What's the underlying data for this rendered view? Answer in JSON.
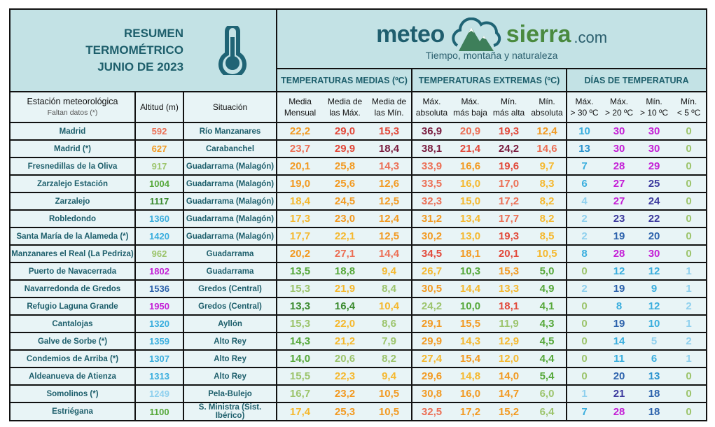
{
  "header": {
    "title_lines": [
      "RESUMEN",
      "TERMOMÉTRICO",
      "JUNIO DE 2023"
    ],
    "logo": {
      "meteo": "meteo",
      "sierra": "sierra",
      "com": ".com",
      "tagline": "Tiempo, montaña y naturaleza"
    },
    "groups": [
      "TEMPERATURAS MEDIAS (ºC)",
      "TEMPERATURAS EXTREMAS (ºC)",
      "DÍAS DE TEMPERATURA"
    ]
  },
  "columns": {
    "station": "Estación meteorológica",
    "station_note": "Faltan datos (*)",
    "altitude": "Altitud (m)",
    "situation": "Situación",
    "sub": [
      [
        "Media",
        "Mensual"
      ],
      [
        "Media de",
        "las Máx."
      ],
      [
        "Media de",
        "las Mín."
      ],
      [
        "Máx.",
        "absoluta"
      ],
      [
        "Máx.",
        "más baja"
      ],
      [
        "Mín.",
        "más alta"
      ],
      [
        "Mín.",
        "absoluta"
      ],
      [
        "Máx.",
        "> 30 ºC"
      ],
      [
        "Máx.",
        "> 20 ºC"
      ],
      [
        "Mín.",
        "> 10 ºC"
      ],
      [
        "Mín.",
        "< 5 ºC"
      ]
    ]
  },
  "palette": {
    "Y": "#f5b82e",
    "O": "#f29a22",
    "S": "#ec6f55",
    "R": "#e2493a",
    "DR": "#7a1c3f",
    "LG": "#9cc46c",
    "G": "#56a83a",
    "DG": "#3a8a2e",
    "LB": "#8fd0ee",
    "B": "#3aaede",
    "MB": "#2a93cf",
    "DB": "#2c62ac",
    "IN": "#3d3a9e",
    "MG": "#c41fd6"
  },
  "rows": [
    {
      "station": "Madrid",
      "alt": "592",
      "altc": "S",
      "sit": "Río Manzanares",
      "v": [
        "22,2",
        "29,0",
        "15,3",
        "36,9",
        "20,9",
        "19,3",
        "12,4",
        "10",
        "30",
        "30",
        "0"
      ],
      "c": [
        "O",
        "R",
        "R",
        "DR",
        "S",
        "R",
        "O",
        "B",
        "MG",
        "MG",
        "LG"
      ]
    },
    {
      "station": "Madrid (*)",
      "alt": "627",
      "altc": "O",
      "sit": "Carabanchel",
      "v": [
        "23,7",
        "29,9",
        "18,4",
        "38,1",
        "21,4",
        "24,2",
        "14,6",
        "13",
        "30",
        "30",
        "0"
      ],
      "c": [
        "S",
        "R",
        "DR",
        "DR",
        "R",
        "DR",
        "S",
        "MB",
        "MG",
        "MG",
        "LG"
      ]
    },
    {
      "station": "Fresnedillas de la Oliva",
      "alt": "917",
      "altc": "LG",
      "sit": "Guadarrama (Malagón)",
      "v": [
        "20,1",
        "25,8",
        "14,3",
        "33,9",
        "16,6",
        "19,6",
        "9,7",
        "7",
        "28",
        "29",
        "0"
      ],
      "c": [
        "O",
        "O",
        "S",
        "S",
        "O",
        "R",
        "Y",
        "B",
        "MG",
        "MG",
        "LG"
      ]
    },
    {
      "station": "Zarzalejo Estación",
      "alt": "1004",
      "altc": "G",
      "sit": "Guadarrama (Malagón)",
      "v": [
        "19,0",
        "25,6",
        "12,6",
        "33,5",
        "16,0",
        "17,0",
        "8,3",
        "6",
        "27",
        "25",
        "0"
      ],
      "c": [
        "O",
        "O",
        "O",
        "S",
        "Y",
        "S",
        "Y",
        "B",
        "MG",
        "IN",
        "LG"
      ]
    },
    {
      "station": "Zarzalejo",
      "alt": "1117",
      "altc": "DG",
      "sit": "Guadarrama (Malagón)",
      "v": [
        "18,4",
        "24,5",
        "12,5",
        "32,3",
        "15,0",
        "17,2",
        "8,2",
        "4",
        "27",
        "24",
        "0"
      ],
      "c": [
        "Y",
        "O",
        "O",
        "S",
        "Y",
        "S",
        "Y",
        "LB",
        "MG",
        "IN",
        "LG"
      ]
    },
    {
      "station": "Robledondo",
      "alt": "1360",
      "altc": "B",
      "sit": "Guadarrama (Malagón)",
      "v": [
        "17,3",
        "23,0",
        "12,4",
        "31,2",
        "13,4",
        "17,7",
        "8,2",
        "2",
        "23",
        "22",
        "0"
      ],
      "c": [
        "Y",
        "O",
        "O",
        "O",
        "Y",
        "S",
        "Y",
        "LB",
        "IN",
        "IN",
        "LG"
      ]
    },
    {
      "station": "Santa María de la Alameda (*)",
      "alt": "1420",
      "altc": "B",
      "sit": "Guadarrama (Malagón)",
      "v": [
        "17,7",
        "22,1",
        "12,5",
        "30,2",
        "13,0",
        "19,3",
        "8,5",
        "2",
        "19",
        "20",
        "0"
      ],
      "c": [
        "Y",
        "Y",
        "O",
        "O",
        "Y",
        "R",
        "Y",
        "LB",
        "DB",
        "DB",
        "LG"
      ]
    },
    {
      "station": "Manzanares el Real (La Pedriza)",
      "alt": "962",
      "altc": "LG",
      "sit": "Guadarrama",
      "v": [
        "20,2",
        "27,1",
        "14,4",
        "34,5",
        "18,1",
        "20,1",
        "10,5",
        "8",
        "28",
        "30",
        "0"
      ],
      "c": [
        "O",
        "S",
        "S",
        "R",
        "O",
        "R",
        "Y",
        "B",
        "MG",
        "MG",
        "LG"
      ]
    },
    {
      "station": "Puerto de Navacerrada",
      "alt": "1802",
      "altc": "MG",
      "sit": "Guadarrama",
      "v": [
        "13,5",
        "18,8",
        "9,4",
        "26,7",
        "10,3",
        "15,3",
        "5,0",
        "0",
        "12",
        "12",
        "1"
      ],
      "c": [
        "G",
        "G",
        "Y",
        "Y",
        "G",
        "O",
        "G",
        "LG",
        "B",
        "B",
        "LB"
      ]
    },
    {
      "station": "Navarredonda de Gredos",
      "alt": "1536",
      "altc": "DB",
      "sit": "Gredos (Central)",
      "v": [
        "15,3",
        "21,9",
        "8,4",
        "30,5",
        "14,4",
        "13,3",
        "4,9",
        "2",
        "19",
        "9",
        "1"
      ],
      "c": [
        "LG",
        "Y",
        "LG",
        "O",
        "Y",
        "Y",
        "G",
        "LB",
        "DB",
        "B",
        "LB"
      ]
    },
    {
      "station": "Refugio Laguna Grande",
      "alt": "1950",
      "altc": "MG",
      "sit": "Gredos (Central)",
      "v": [
        "13,3",
        "16,4",
        "10,4",
        "24,2",
        "10,0",
        "18,1",
        "4,1",
        "0",
        "8",
        "12",
        "2"
      ],
      "c": [
        "DG",
        "DG",
        "Y",
        "LG",
        "G",
        "R",
        "G",
        "LG",
        "B",
        "B",
        "LB"
      ]
    },
    {
      "station": "Cantalojas",
      "alt": "1320",
      "altc": "B",
      "sit": "Ayllón",
      "v": [
        "15,3",
        "22,0",
        "8,6",
        "29,1",
        "15,5",
        "11,9",
        "4,3",
        "0",
        "19",
        "10",
        "1"
      ],
      "c": [
        "LG",
        "Y",
        "LG",
        "O",
        "O",
        "LG",
        "G",
        "LG",
        "DB",
        "B",
        "LB"
      ]
    },
    {
      "station": "Galve de Sorbe (*)",
      "alt": "1359",
      "altc": "B",
      "sit": "Alto Rey",
      "v": [
        "14,3",
        "21,2",
        "7,9",
        "29,9",
        "14,3",
        "12,9",
        "4,5",
        "0",
        "14",
        "5",
        "2"
      ],
      "c": [
        "G",
        "Y",
        "LG",
        "O",
        "Y",
        "Y",
        "G",
        "LG",
        "B",
        "LB",
        "LB"
      ]
    },
    {
      "station": "Condemios de Arriba (*)",
      "alt": "1307",
      "altc": "B",
      "sit": "Alto Rey",
      "v": [
        "14,0",
        "20,6",
        "8,2",
        "27,4",
        "15,4",
        "12,0",
        "4,4",
        "0",
        "11",
        "6",
        "1"
      ],
      "c": [
        "G",
        "LG",
        "LG",
        "Y",
        "O",
        "Y",
        "G",
        "LG",
        "B",
        "B",
        "LB"
      ]
    },
    {
      "station": "Aldeanueva de Atienza",
      "alt": "1313",
      "altc": "B",
      "sit": "Alto Rey",
      "v": [
        "15,5",
        "22,3",
        "9,4",
        "29,6",
        "14,8",
        "14,0",
        "5,4",
        "0",
        "20",
        "13",
        "0"
      ],
      "c": [
        "LG",
        "Y",
        "Y",
        "O",
        "Y",
        "O",
        "G",
        "LG",
        "DB",
        "MB",
        "LG"
      ]
    },
    {
      "station": "Somolinos (*)",
      "alt": "1249",
      "altc": "LB",
      "sit": "Pela-Bulejo",
      "v": [
        "16,7",
        "23,2",
        "10,5",
        "30,8",
        "16,0",
        "14,7",
        "6,0",
        "1",
        "21",
        "18",
        "0"
      ],
      "c": [
        "LG",
        "O",
        "O",
        "O",
        "O",
        "O",
        "LG",
        "LB",
        "IN",
        "DB",
        "LG"
      ]
    },
    {
      "station": "Estriégana",
      "alt": "1100",
      "altc": "G",
      "sit": "S. Ministra (Sist. Ibérico)",
      "v": [
        "17,4",
        "25,3",
        "10,5",
        "32,5",
        "17,2",
        "15,2",
        "6,4",
        "7",
        "28",
        "18",
        "0"
      ],
      "c": [
        "Y",
        "O",
        "O",
        "S",
        "O",
        "O",
        "LG",
        "B",
        "MG",
        "DB",
        "LG"
      ]
    }
  ]
}
